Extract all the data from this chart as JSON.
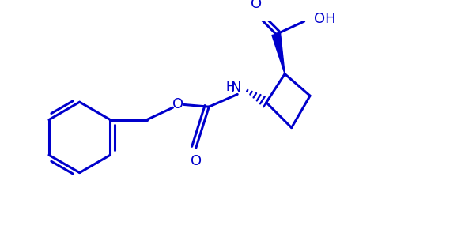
{
  "color": "#0000CC",
  "bg_color": "#FFFFFF",
  "lw": 2.2,
  "lw_thin": 1.6,
  "figsize": [
    5.83,
    3.0
  ],
  "dpi": 100,
  "xlim": [
    0,
    10
  ],
  "ylim": [
    -1.5,
    3.5
  ]
}
